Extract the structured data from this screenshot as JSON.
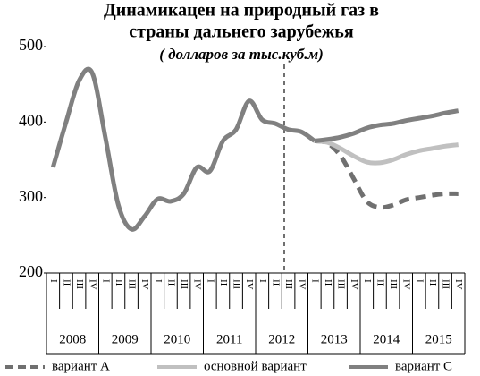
{
  "chart_data": {
    "type": "line",
    "title": "Динамикацен на природный газ в",
    "title_line2": "страны дальнего зарубежья",
    "subtitle": "( долларов за тыс.куб.м)",
    "categories": [
      "I",
      "II",
      "III",
      "IV",
      "I",
      "II",
      "III",
      "IV",
      "I",
      "II",
      "III",
      "IV",
      "I",
      "II",
      "III",
      "IV",
      "I",
      "II",
      "III",
      "IV",
      "I",
      "II",
      "III",
      "IV",
      "I",
      "II",
      "III",
      "IV",
      "I",
      "II",
      "III",
      "IV"
    ],
    "groups": [
      "2008",
      "2009",
      "2010",
      "2011",
      "2012",
      "2013",
      "2014",
      "2015"
    ],
    "ylim": [
      200,
      500
    ],
    "yticks": [
      200,
      300,
      400,
      500
    ],
    "grid": false,
    "series": [
      {
        "color": "#808080",
        "dash": false,
        "values": [
          340,
          400,
          455,
          465,
          380,
          290,
          258,
          275,
          298,
          295,
          305,
          340,
          335,
          375,
          390,
          428,
          403,
          398,
          390,
          387,
          375,
          null,
          null,
          null,
          null,
          null,
          null,
          null,
          null,
          null,
          null,
          null
        ]
      },
      {
        "name": "вариант А",
        "color": "#707070",
        "dash": true,
        "values": [
          null,
          null,
          null,
          null,
          null,
          null,
          null,
          null,
          null,
          null,
          null,
          null,
          null,
          null,
          null,
          null,
          null,
          null,
          null,
          null,
          375,
          372,
          355,
          325,
          295,
          287,
          290,
          297,
          300,
          303,
          305,
          305
        ]
      },
      {
        "name": "основной вариант",
        "color": "#c0c0c0",
        "dash": false,
        "values": [
          null,
          null,
          null,
          null,
          null,
          null,
          null,
          null,
          null,
          null,
          null,
          null,
          null,
          null,
          null,
          null,
          null,
          null,
          null,
          null,
          375,
          373,
          365,
          355,
          347,
          346,
          350,
          357,
          362,
          365,
          368,
          370
        ]
      },
      {
        "name": "вариант С",
        "color": "#808080",
        "dash": false,
        "values": [
          null,
          null,
          null,
          null,
          null,
          null,
          null,
          null,
          null,
          null,
          null,
          null,
          null,
          null,
          null,
          null,
          null,
          null,
          null,
          null,
          375,
          377,
          380,
          385,
          392,
          396,
          398,
          402,
          405,
          408,
          412,
          415
        ]
      }
    ]
  }
}
